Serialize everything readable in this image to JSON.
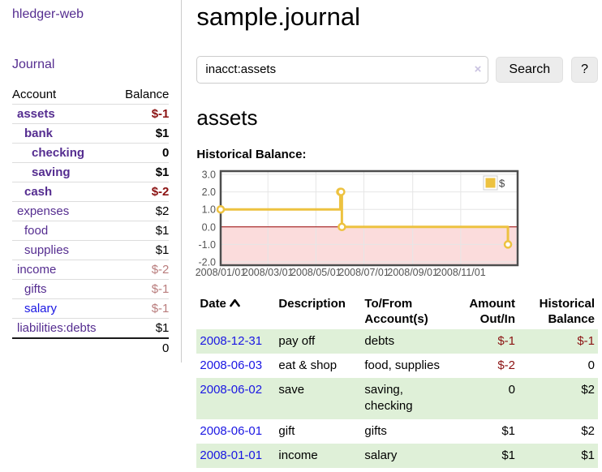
{
  "sidebar": {
    "brand": "hledger-web",
    "journal_link": "Journal",
    "accounts": {
      "header": {
        "account": "Account",
        "balance": "Balance"
      },
      "rows": [
        {
          "name": "assets",
          "balance": "$-1"
        },
        {
          "name": "bank",
          "balance": "$1"
        },
        {
          "name": "checking",
          "balance": "0"
        },
        {
          "name": "saving",
          "balance": "$1"
        },
        {
          "name": "cash",
          "balance": "$-2"
        },
        {
          "name": "expenses",
          "balance": "$2"
        },
        {
          "name": "food",
          "balance": "$1"
        },
        {
          "name": "supplies",
          "balance": "$1"
        },
        {
          "name": "income",
          "balance": "$-2"
        },
        {
          "name": "gifts",
          "balance": "$-1"
        },
        {
          "name": "salary",
          "balance": "$-1"
        },
        {
          "name": "liabilities:debts",
          "balance": "$1"
        }
      ],
      "total": "0"
    }
  },
  "main": {
    "title": "sample.journal",
    "search": {
      "value": "inacct:assets",
      "clear_icon": "×",
      "search_button": "Search",
      "help_button": "?"
    },
    "heading": "assets",
    "chart_label": "Historical Balance:",
    "register": {
      "headers": {
        "date": "Date",
        "description": "Description",
        "tofrom_line1": "To/From",
        "tofrom_line2": "Account(s)",
        "amount_line1": "Amount",
        "amount_line2": "Out/In",
        "balance_line1": "Historical",
        "balance_line2": "Balance"
      },
      "sort_icon": "chevron-up",
      "rows": [
        {
          "date": "2008-12-31",
          "description": "pay off",
          "accounts": "debts",
          "amount": "$-1",
          "balance": "$-1"
        },
        {
          "date": "2008-06-03",
          "description": "eat & shop",
          "accounts": "food, supplies",
          "amount": "$-2",
          "balance": "0"
        },
        {
          "date": "2008-06-02",
          "description": "save",
          "accounts": "saving, checking",
          "amount": "0",
          "balance": "$2"
        },
        {
          "date": "2008-06-01",
          "description": "gift",
          "accounts": "gifts",
          "amount": "$1",
          "balance": "$2"
        },
        {
          "date": "2008-01-01",
          "description": "income",
          "accounts": "salary",
          "amount": "$1",
          "balance": "$1"
        }
      ]
    }
  },
  "colors": {
    "link_purple": "#552d90",
    "link_blue": "#1a16e3",
    "negative_strong": "#8b1212",
    "negative_muted": "#b97c7c",
    "row_stripe_green": "#dff0d8",
    "button_gray": "#ececec"
  },
  "chart_data": {
    "type": "line",
    "title": "Historical Balance:",
    "step": true,
    "series": [
      {
        "name": "$",
        "color": "#edc240",
        "points": [
          [
            "2008-01-01",
            1
          ],
          [
            "2008-06-01",
            2
          ],
          [
            "2008-06-02",
            2
          ],
          [
            "2008-06-03",
            0
          ],
          [
            "2008-12-31",
            -1
          ]
        ]
      }
    ],
    "legend": [
      {
        "label": "$",
        "color": "#edc240",
        "position": "top-right"
      }
    ],
    "x_range": [
      "2008-01-01",
      "2009-01-12"
    ],
    "ylim": [
      -2.0,
      3.0
    ],
    "x_ticks": [
      "2008/01/01",
      "2008/03/01",
      "2008/05/01",
      "2008/07/01",
      "2008/09/01",
      "2008/11/01"
    ],
    "y_ticks": [
      3.0,
      2.0,
      1.0,
      0.0,
      -1.0,
      -2.0
    ],
    "grid": true,
    "zero_line_color": "#990000",
    "negative_fill": "#fbdcdc",
    "border_color": "#4d4d4d",
    "gridline_color": "#e6e6e6"
  }
}
